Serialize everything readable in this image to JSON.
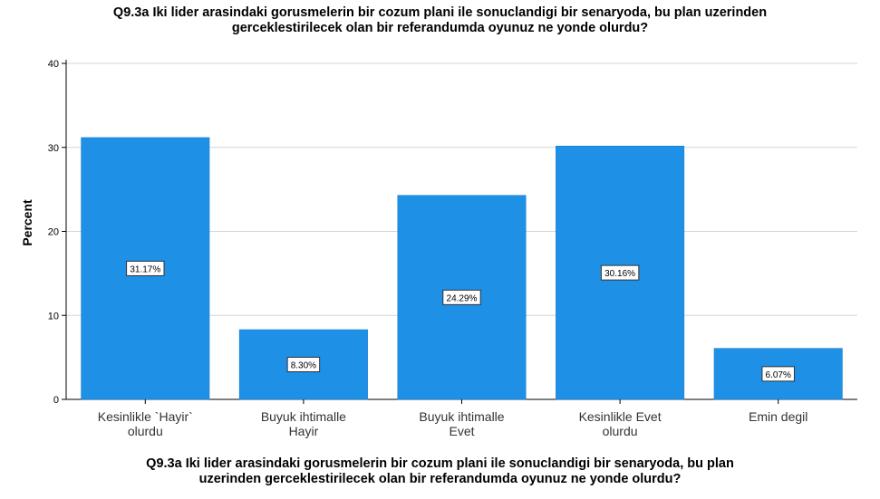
{
  "chart_data": {
    "type": "bar",
    "title_lines": [
      "Q9.3a Iki lider arasindaki gorusmelerin bir cozum plani ile sonuclandigi bir senaryoda, bu plan uzerinden",
      "gerceklestirilecek olan bir referandumda oyunuz ne yonde olurdu?"
    ],
    "xlabel_lines": [
      "Q9.3a Iki lider arasindaki gorusmelerin bir cozum plani ile sonuclandigi bir senaryoda, bu plan",
      "uzerinden gerceklestirilecek olan bir referandumda oyunuz ne yonde olurdu?"
    ],
    "ylabel": "Percent",
    "ylim": [
      0,
      40
    ],
    "yticks": [
      0,
      10,
      20,
      30,
      40
    ],
    "grid": true,
    "bar_color": "#1e90e6",
    "categories": [
      [
        "Kesinlikle `Hayir`",
        "olurdu"
      ],
      [
        "Buyuk ihtimalle",
        "Hayir"
      ],
      [
        "Buyuk ihtimalle",
        "Evet"
      ],
      [
        "Kesinlikle Evet",
        "olurdu"
      ],
      [
        "Emin degil"
      ]
    ],
    "values": [
      31.17,
      8.3,
      24.29,
      30.16,
      6.07
    ],
    "data_labels": [
      "31.17%",
      "8.30%",
      "24.29%",
      "30.16%",
      "6.07%"
    ]
  }
}
